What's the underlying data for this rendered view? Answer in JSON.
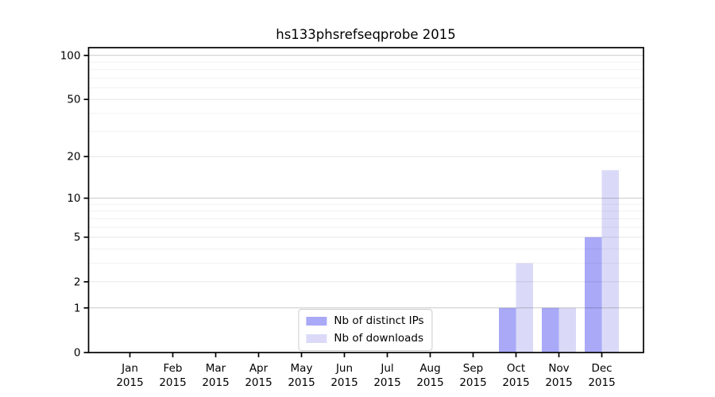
{
  "title": "hs133phsrefseqprobe 2015",
  "chart_data": {
    "type": "bar",
    "title": "hs133phsrefseqprobe 2015",
    "categories": [
      "Jan",
      "Feb",
      "Mar",
      "Apr",
      "May",
      "Jun",
      "Jul",
      "Aug",
      "Sep",
      "Oct",
      "Nov",
      "Dec"
    ],
    "category_year": "2015",
    "series": [
      {
        "name": "Nb of distinct IPs",
        "color": "#a9a9f8",
        "values": [
          0,
          0,
          0,
          0,
          0,
          0,
          0,
          0,
          0,
          1,
          1,
          5
        ]
      },
      {
        "name": "Nb of downloads",
        "color": "#dadaf8",
        "values": [
          0,
          0,
          0,
          0,
          0,
          0,
          0,
          0,
          0,
          3,
          1,
          16
        ]
      }
    ],
    "y_scale": "log1p",
    "y_ticks": [
      100,
      50,
      20,
      10,
      5,
      2,
      1,
      0
    ],
    "y_tick_labels": [
      "100",
      "50",
      "20",
      "10",
      "5",
      "2",
      "1",
      "0"
    ],
    "y_minor_gridlines": [
      3,
      4,
      6,
      7,
      8,
      9,
      30,
      40,
      60,
      70,
      80,
      90
    ],
    "ylim": [
      0,
      113
    ],
    "grid": true,
    "legend_position": "lower center",
    "axis_color": "#000000",
    "text_color": "#000000"
  }
}
